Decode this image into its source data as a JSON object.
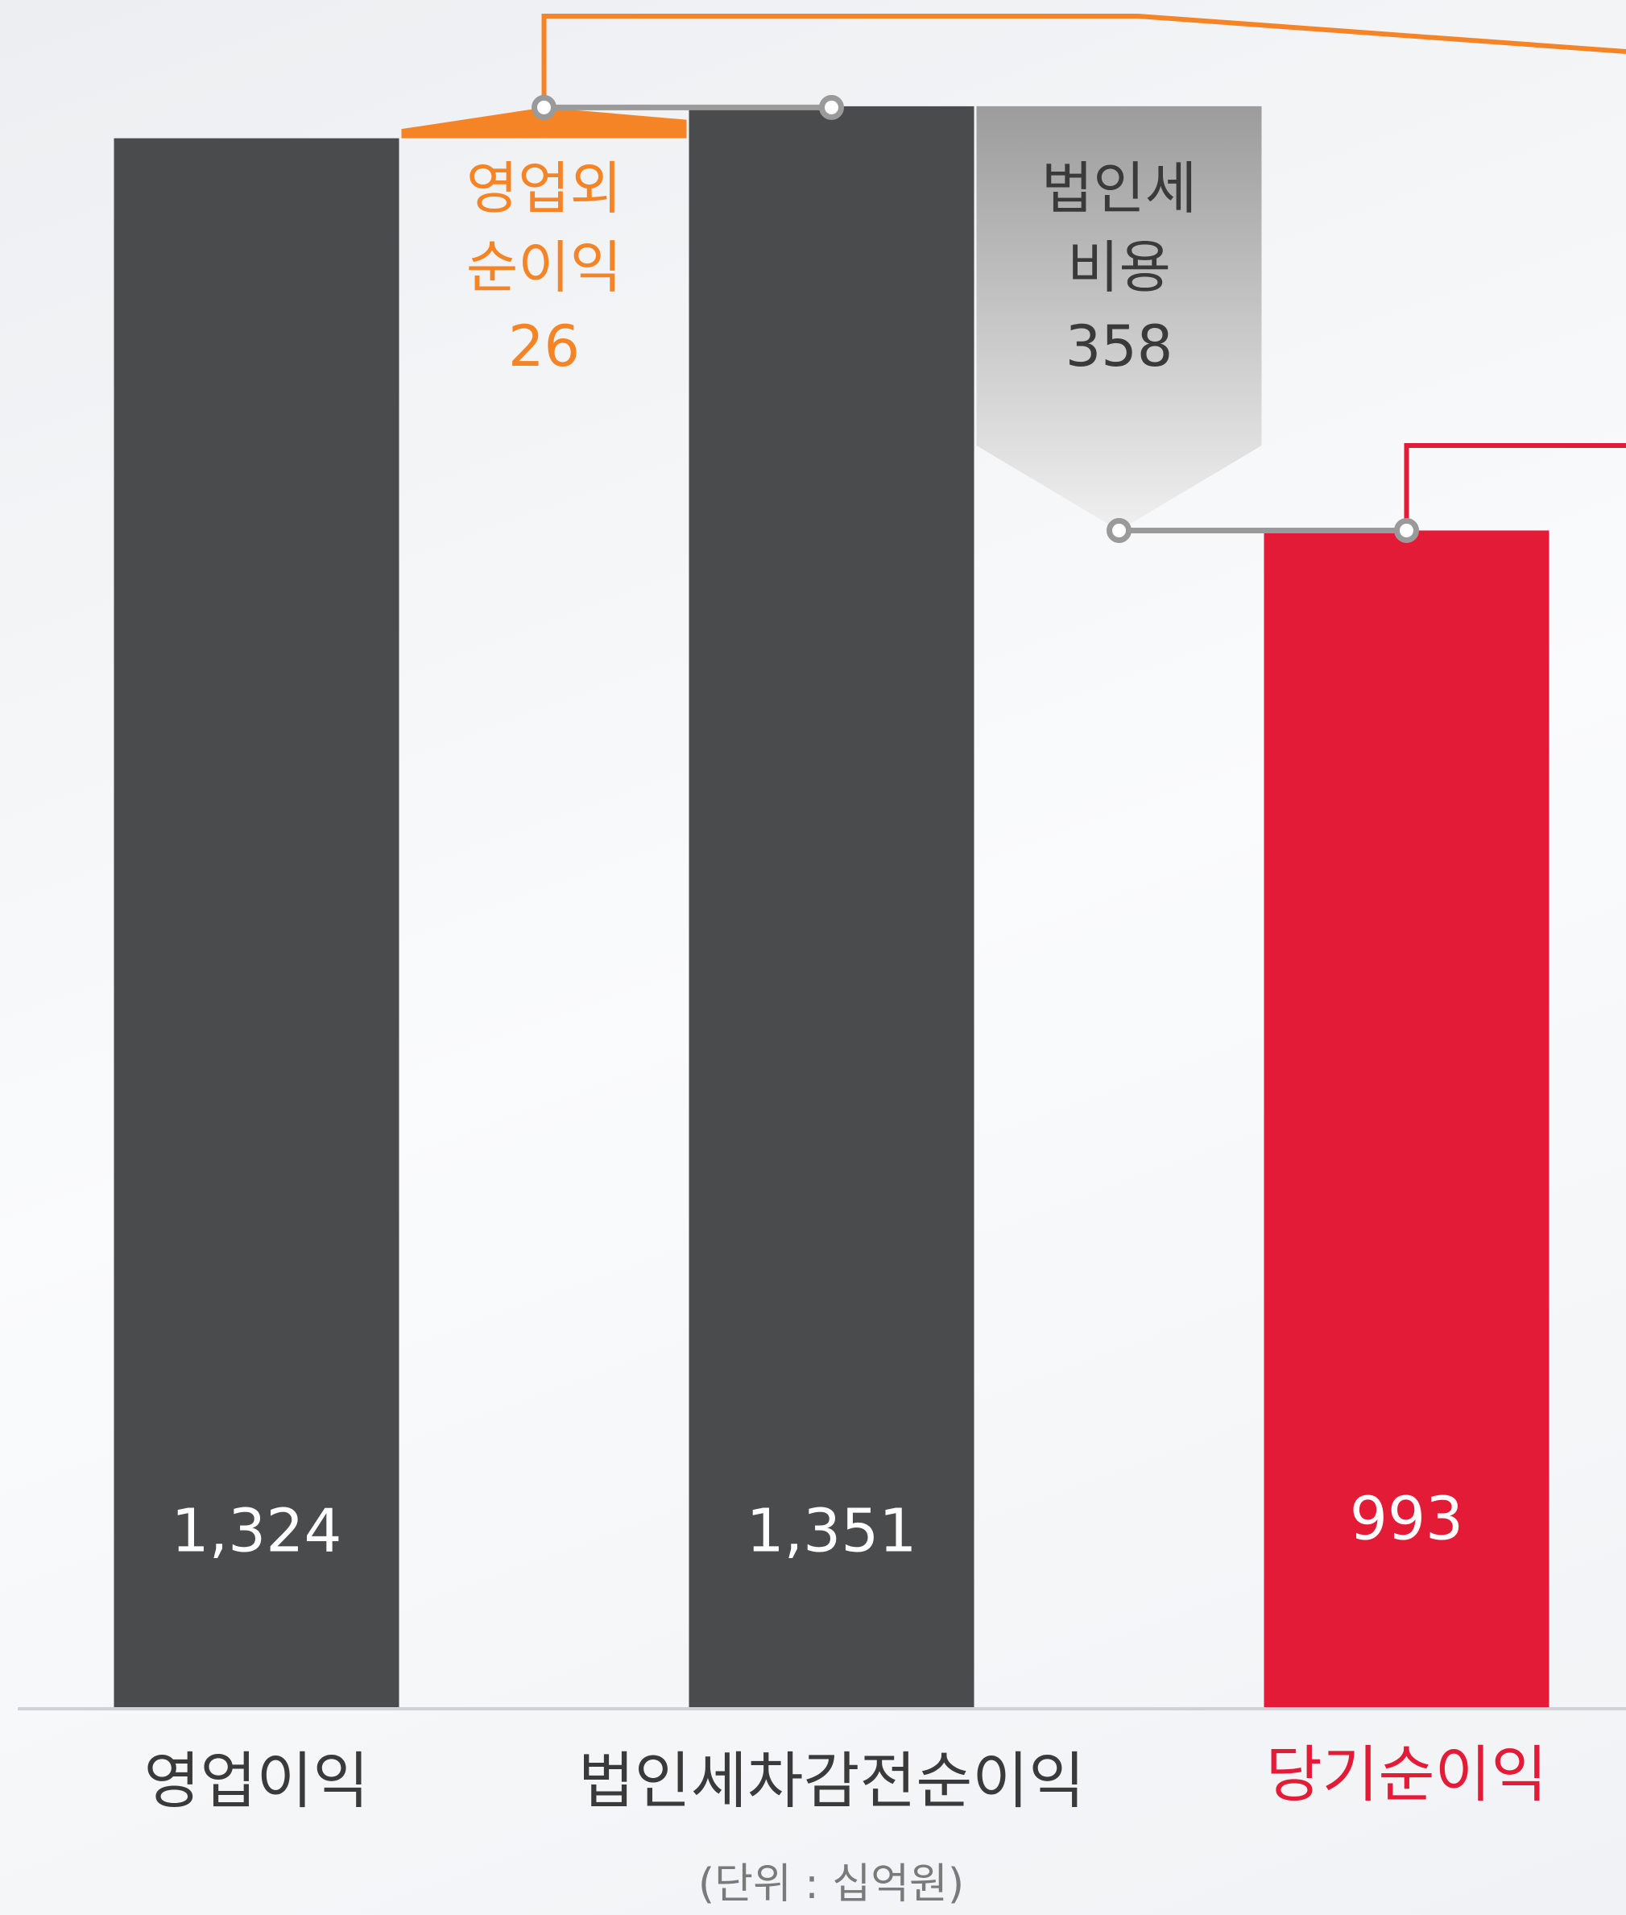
{
  "chart_data": {
    "type": "waterfall",
    "categories": [
      "영업이익",
      "영업외\n순이익",
      "법인세차감전순이익",
      "법인세\n비용",
      "당기순이익"
    ],
    "values": [
      1324,
      26,
      1351,
      358,
      993
    ],
    "value_labels": [
      "1,324",
      "26",
      "1,351",
      "358",
      "993"
    ],
    "bar_kinds": [
      "total",
      "increase",
      "total",
      "decrease",
      "total"
    ],
    "colors": [
      "#4a4b4d",
      "#f58426",
      "#4a4b4d",
      "#a8a8a8",
      "#e31b37"
    ],
    "label_colors": [
      "#3a3a3a",
      "#f58426",
      "#3a3a3a",
      "#3a3a3a",
      "#e31b37"
    ],
    "ylim": [
      0,
      1440
    ],
    "unit": "(단위 : 십억원)"
  }
}
